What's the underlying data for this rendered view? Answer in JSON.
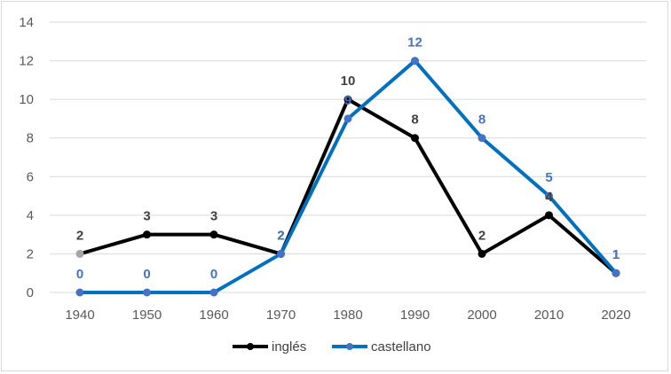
{
  "chart_data": {
    "type": "line",
    "categories": [
      "1940",
      "1950",
      "1960",
      "1970",
      "1980",
      "1990",
      "2000",
      "2010",
      "2020"
    ],
    "series": [
      {
        "name": "inglés",
        "values": [
          2,
          3,
          3,
          2,
          10,
          8,
          2,
          4,
          1
        ],
        "color": "#000000",
        "label_color": "#404040"
      },
      {
        "name": "castellano",
        "values": [
          0,
          0,
          0,
          2,
          9,
          12,
          8,
          5,
          1
        ],
        "color": "#0070C0",
        "label_color": "#4472C4"
      }
    ],
    "title": "",
    "xlabel": "",
    "ylabel": "",
    "ylim": [
      0,
      14
    ],
    "yticks": [
      "0",
      "2",
      "4",
      "6",
      "8",
      "10",
      "12",
      "14"
    ],
    "grid": true,
    "legend": "bottom",
    "data_labels": true
  }
}
